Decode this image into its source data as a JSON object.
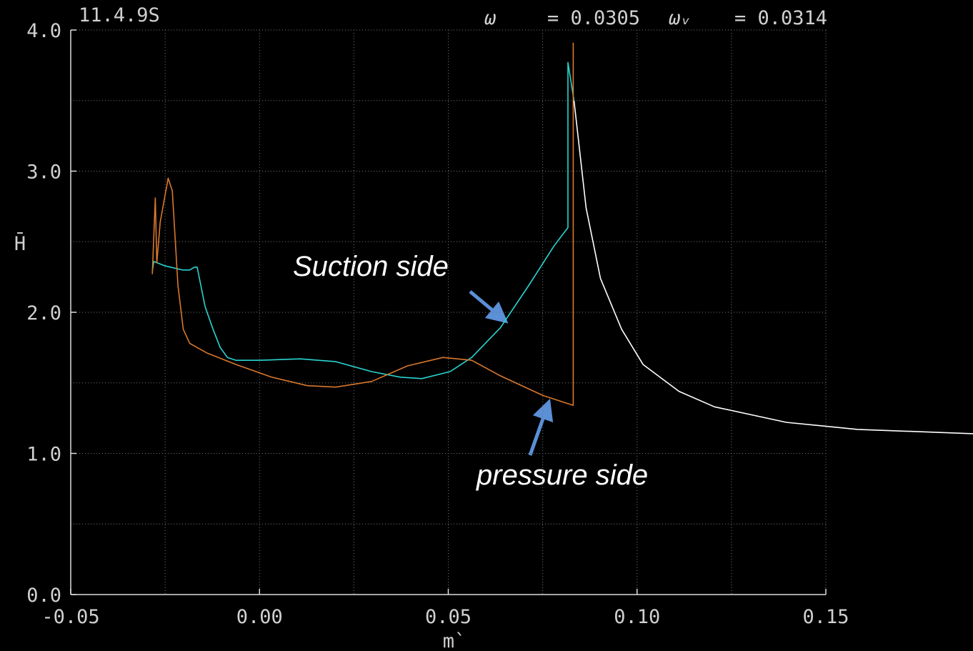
{
  "chart_data": {
    "type": "line",
    "title": "11.4.9S",
    "info": [
      "ω",
      "= 0.0305",
      "ωᵥ",
      "= 0.0314"
    ],
    "xlabel": "m`",
    "ylabel": "H̄",
    "xlim": [
      -0.05,
      0.15
    ],
    "ylim": [
      0.0,
      4.0
    ],
    "xticks": [
      {
        "value": -0.05,
        "label": "-0.05"
      },
      {
        "value": 0.0,
        "label": "0.00"
      },
      {
        "value": 0.05,
        "label": "0.05"
      },
      {
        "value": 0.1,
        "label": "0.10"
      },
      {
        "value": 0.15,
        "label": "0.15"
      }
    ],
    "yticks": [
      {
        "value": 0.0,
        "label": "0.0"
      },
      {
        "value": 1.0,
        "label": "1.0"
      },
      {
        "value": 2.0,
        "label": "2.0"
      },
      {
        "value": 3.0,
        "label": "3.0"
      },
      {
        "value": 4.0,
        "label": "4.0"
      }
    ],
    "xgrid": [
      -0.025,
      0.0,
      0.025,
      0.05,
      0.075,
      0.1,
      0.125,
      0.15
    ],
    "ygrid": [
      0.5,
      1.0,
      1.5,
      2.0,
      2.5,
      3.0,
      3.5,
      4.0
    ],
    "grid": true,
    "annotations": [
      "Suction side",
      "pressure side"
    ],
    "series": [
      {
        "color": "#2ad4d0",
        "x": [
          -0.0284,
          -0.028,
          -0.0252,
          -0.0204,
          -0.0185,
          -0.0172,
          -0.0165,
          -0.0144,
          -0.0123,
          -0.0104,
          -0.0085,
          -0.0062,
          0.0,
          0.0108,
          0.0202,
          0.0297,
          0.0373,
          0.043,
          0.0505,
          0.0562,
          0.0638,
          0.0713,
          0.078,
          0.0817,
          0.0817,
          0.0833
        ],
        "values": [
          2.29,
          2.36,
          2.33,
          2.3,
          2.3,
          2.32,
          2.32,
          2.04,
          1.88,
          1.75,
          1.68,
          1.66,
          1.66,
          1.67,
          1.65,
          1.58,
          1.54,
          1.53,
          1.58,
          1.68,
          1.89,
          2.19,
          2.47,
          2.6,
          3.77,
          3.5
        ]
      },
      {
        "color": "#d9782d",
        "x": [
          -0.0284,
          -0.0276,
          -0.0272,
          -0.0263,
          -0.0242,
          -0.0231,
          -0.0216,
          -0.0202,
          -0.0185,
          -0.0138,
          -0.0062,
          0.0032,
          0.0127,
          0.0202,
          0.0297,
          0.0392,
          0.0486,
          0.0562,
          0.0638,
          0.0751,
          0.0831,
          0.0831
        ],
        "values": [
          2.27,
          2.81,
          2.35,
          2.64,
          2.95,
          2.86,
          2.19,
          1.88,
          1.78,
          1.71,
          1.63,
          1.54,
          1.48,
          1.47,
          1.51,
          1.62,
          1.68,
          1.66,
          1.55,
          1.41,
          1.34,
          3.91
        ]
      },
      {
        "color": "#ffffff",
        "x": [
          0.0833,
          0.0865,
          0.0903,
          0.0959,
          0.1016,
          0.1111,
          0.1205,
          0.1395,
          0.1584,
          0.189
        ],
        "values": [
          3.5,
          2.74,
          2.24,
          1.88,
          1.63,
          1.44,
          1.33,
          1.22,
          1.17,
          1.14
        ]
      }
    ]
  }
}
